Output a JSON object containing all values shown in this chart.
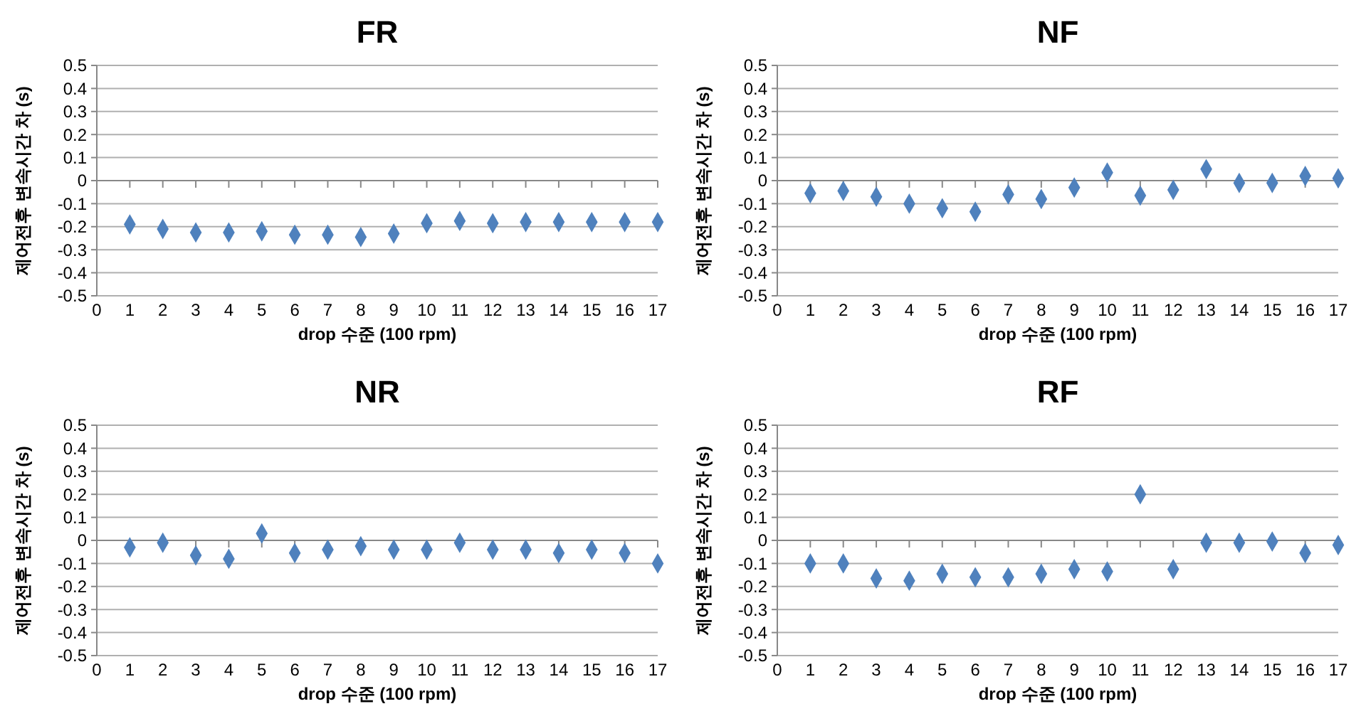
{
  "chart_data": [
    {
      "type": "scatter",
      "title": "FR",
      "xlabel": "drop 수준 (100 rpm)",
      "ylabel": "제어전후 변속시간 차 (s)",
      "x": [
        1,
        2,
        3,
        4,
        5,
        6,
        7,
        8,
        9,
        10,
        11,
        12,
        13,
        14,
        15,
        16,
        17
      ],
      "series": [
        {
          "color": "#4f81bd",
          "values": [
            -0.19,
            -0.21,
            -0.225,
            -0.225,
            -0.22,
            -0.235,
            -0.235,
            -0.245,
            -0.23,
            -0.185,
            -0.175,
            -0.185,
            -0.18,
            -0.18,
            -0.18,
            -0.18,
            -0.18
          ]
        }
      ],
      "xlim": [
        0,
        17
      ],
      "xticks": [
        0,
        1,
        2,
        3,
        4,
        5,
        6,
        7,
        8,
        9,
        10,
        11,
        12,
        13,
        14,
        15,
        16,
        17
      ],
      "ylim": [
        -0.5,
        0.5
      ],
      "yticks": [
        -0.5,
        -0.4,
        -0.3,
        -0.2,
        -0.1,
        0,
        0.1,
        0.2,
        0.3,
        0.4,
        0.5
      ],
      "grid": "y",
      "marker": "diamond"
    },
    {
      "type": "scatter",
      "title": "NF",
      "xlabel": "drop 수준 (100 rpm)",
      "ylabel": "제어전후 변속시간 차 (s)",
      "x": [
        1,
        2,
        3,
        4,
        5,
        6,
        7,
        8,
        9,
        10,
        11,
        12,
        13,
        14,
        15,
        16,
        17
      ],
      "series": [
        {
          "color": "#4f81bd",
          "values": [
            -0.055,
            -0.045,
            -0.07,
            -0.1,
            -0.12,
            -0.135,
            -0.06,
            -0.08,
            -0.03,
            0.035,
            -0.065,
            -0.04,
            0.05,
            -0.01,
            -0.01,
            0.02,
            0.01
          ]
        }
      ],
      "xlim": [
        0,
        17
      ],
      "xticks": [
        0,
        1,
        2,
        3,
        4,
        5,
        6,
        7,
        8,
        9,
        10,
        11,
        12,
        13,
        14,
        15,
        16,
        17
      ],
      "ylim": [
        -0.5,
        0.5
      ],
      "yticks": [
        -0.5,
        -0.4,
        -0.3,
        -0.2,
        -0.1,
        0,
        0.1,
        0.2,
        0.3,
        0.4,
        0.5
      ],
      "grid": "y",
      "marker": "diamond"
    },
    {
      "type": "scatter",
      "title": "NR",
      "xlabel": "drop 수준 (100 rpm)",
      "ylabel": "제어전후 변속시간 차 (s)",
      "x": [
        1,
        2,
        3,
        4,
        5,
        6,
        7,
        8,
        9,
        10,
        11,
        12,
        13,
        14,
        15,
        16,
        17
      ],
      "series": [
        {
          "color": "#4f81bd",
          "values": [
            -0.03,
            -0.01,
            -0.065,
            -0.08,
            0.03,
            -0.055,
            -0.04,
            -0.025,
            -0.04,
            -0.04,
            -0.01,
            -0.04,
            -0.04,
            -0.055,
            -0.04,
            -0.055,
            -0.1
          ]
        }
      ],
      "xlim": [
        0,
        17
      ],
      "xticks": [
        0,
        1,
        2,
        3,
        4,
        5,
        6,
        7,
        8,
        9,
        10,
        11,
        12,
        13,
        14,
        15,
        16,
        17
      ],
      "ylim": [
        -0.5,
        0.5
      ],
      "yticks": [
        -0.5,
        -0.4,
        -0.3,
        -0.2,
        -0.1,
        0,
        0.1,
        0.2,
        0.3,
        0.4,
        0.5
      ],
      "grid": "y",
      "marker": "diamond"
    },
    {
      "type": "scatter",
      "title": "RF",
      "xlabel": "drop 수준 (100 rpm)",
      "ylabel": "제어전후 변속시간 차 (s)",
      "x": [
        1,
        2,
        3,
        4,
        5,
        6,
        7,
        8,
        9,
        10,
        11,
        12,
        13,
        14,
        15,
        16,
        17
      ],
      "series": [
        {
          "color": "#4f81bd",
          "values": [
            -0.1,
            -0.1,
            -0.165,
            -0.175,
            -0.145,
            -0.16,
            -0.16,
            -0.145,
            -0.125,
            -0.135,
            0.2,
            -0.125,
            -0.01,
            -0.01,
            -0.005,
            -0.055,
            -0.02
          ]
        }
      ],
      "xlim": [
        0,
        17
      ],
      "xticks": [
        0,
        1,
        2,
        3,
        4,
        5,
        6,
        7,
        8,
        9,
        10,
        11,
        12,
        13,
        14,
        15,
        16,
        17
      ],
      "ylim": [
        -0.5,
        0.5
      ],
      "yticks": [
        -0.5,
        -0.4,
        -0.3,
        -0.2,
        -0.1,
        0,
        0.1,
        0.2,
        0.3,
        0.4,
        0.5
      ],
      "grid": "y",
      "marker": "diamond"
    }
  ]
}
